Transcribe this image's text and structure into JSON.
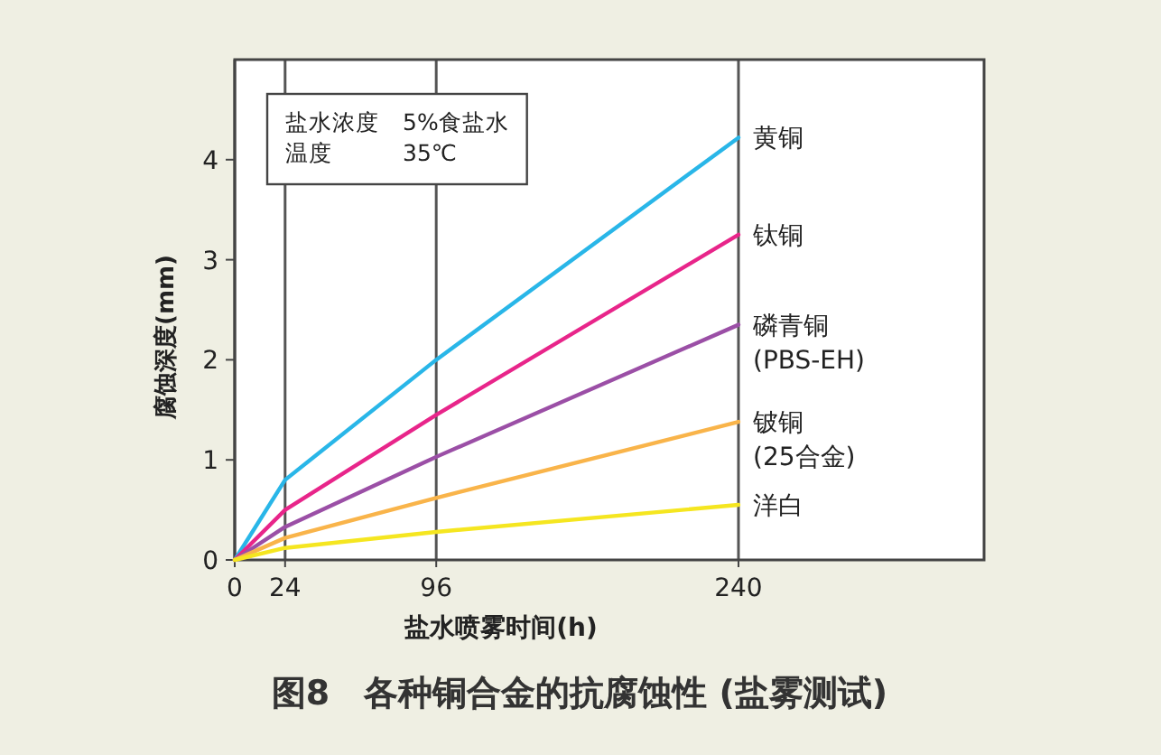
{
  "chart_data": {
    "type": "line",
    "title": "图8　各种铜合金的抗腐蚀性 (盐雾测试)",
    "xlabel": "盐水喷雾时间(h)",
    "ylabel": "腐蚀深度(mm)",
    "x": [
      0,
      24,
      96,
      240
    ],
    "xlim": [
      0,
      357
    ],
    "ylim": [
      0,
      5
    ],
    "xticks": [
      0,
      24,
      96,
      240
    ],
    "yticks": [
      0,
      1,
      2,
      3,
      4
    ],
    "grid": "x",
    "marker": "none",
    "line_style": "solid",
    "annotations": [
      "盐水浓度　5%食盐水",
      "温度　　　35℃"
    ],
    "series": [
      {
        "name": "黄铜",
        "color": "#29b6e8",
        "values": [
          0,
          0.8,
          2.0,
          4.22
        ]
      },
      {
        "name": "钛铜",
        "color": "#e8258a",
        "values": [
          0,
          0.5,
          1.45,
          3.25
        ]
      },
      {
        "name": "磷青铜\n(PBS-EH)",
        "color": "#9b4fa6",
        "values": [
          0,
          0.33,
          1.03,
          2.35
        ]
      },
      {
        "name": "铍铜\n(25合金)",
        "color": "#f9b44a",
        "values": [
          0,
          0.22,
          0.62,
          1.38
        ]
      },
      {
        "name": "洋白",
        "color": "#f5e620",
        "values": [
          0,
          0.12,
          0.28,
          0.55
        ]
      }
    ]
  }
}
